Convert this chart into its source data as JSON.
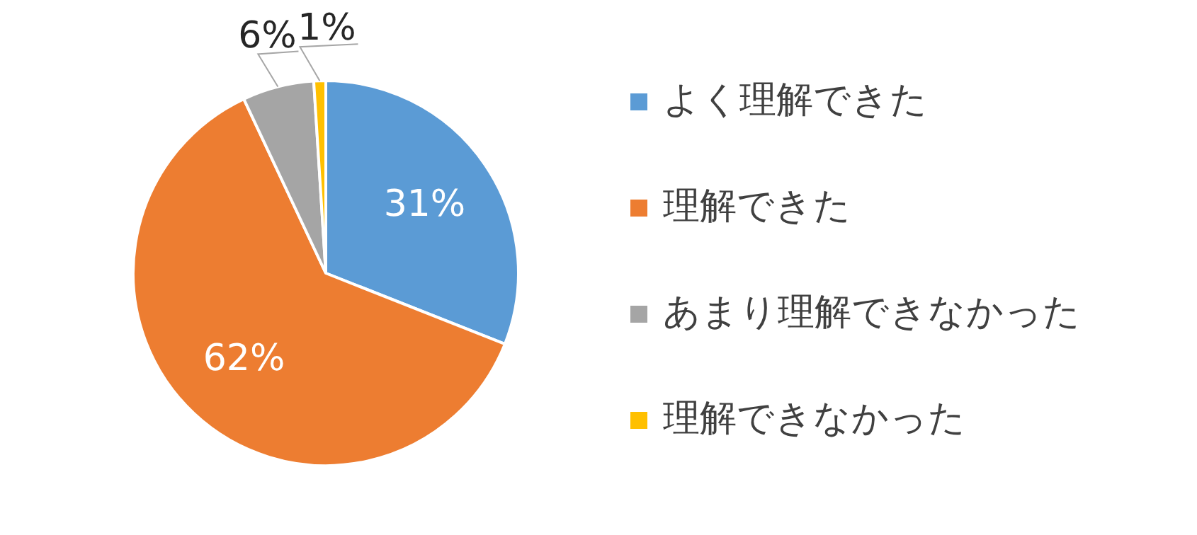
{
  "chart_data": {
    "type": "pie",
    "categories": [
      "よく理解できた",
      "理解できた",
      "あまり理解できなかった",
      "理解できなかった"
    ],
    "values": [
      31,
      62,
      6,
      1
    ],
    "colors": [
      "#5b9bd5",
      "#ed7d31",
      "#a5a5a5",
      "#ffc000"
    ],
    "value_labels": [
      "31%",
      "62%",
      "6%",
      "1%"
    ],
    "legend": "right"
  }
}
